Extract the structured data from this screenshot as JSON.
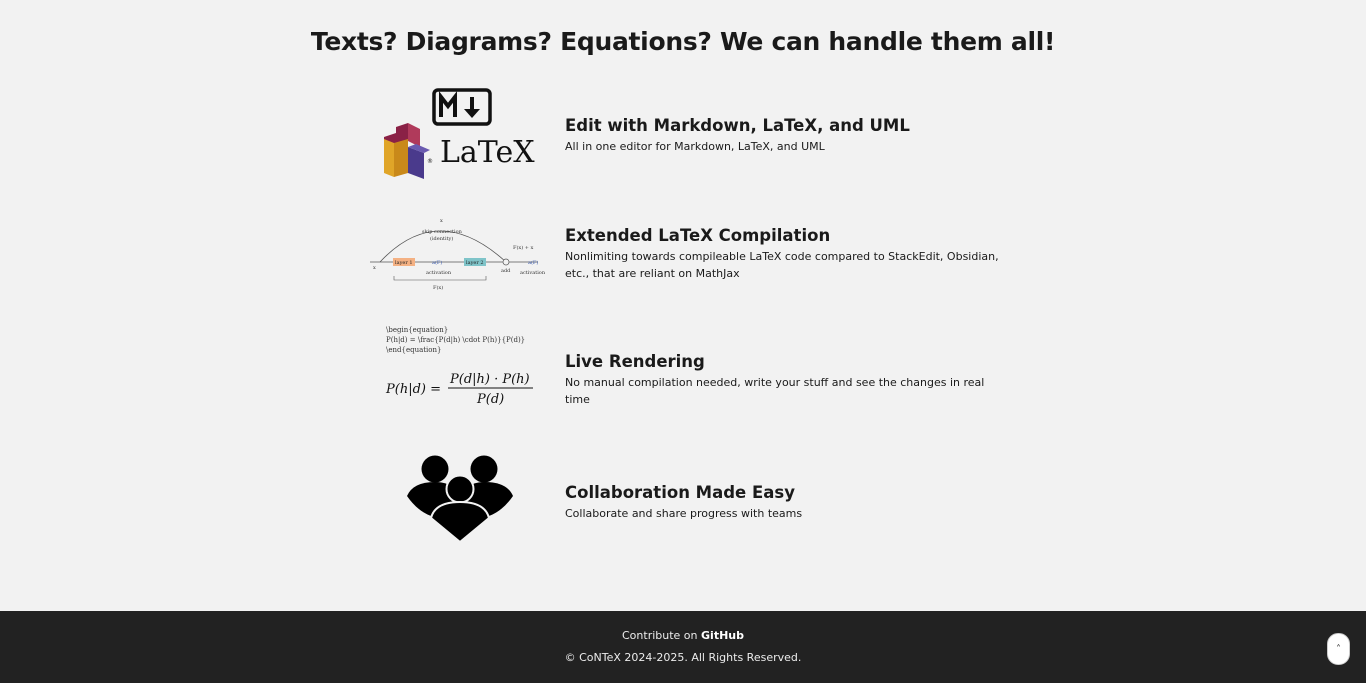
{
  "page": {
    "title": "Texts? Diagrams? Equations? We can handle them all!"
  },
  "features": [
    {
      "title": "Edit with Markdown, LaTeX, and UML",
      "description": "All in one editor for Markdown, LaTeX, and UML"
    },
    {
      "title": "Extended LaTeX Compilation",
      "description": "Nonlimiting towards compileable LaTeX code compared to StackEdit, Obsidian, etc., that are reliant on MathJax"
    },
    {
      "title": "Live Rendering",
      "description": "No manual compilation needed, write your stuff and see the changes in real time"
    },
    {
      "title": "Collaboration Made Easy",
      "description": "Collaborate and share progress with teams"
    }
  ],
  "icons": {
    "editors": {
      "latex_logo": "LaTeX"
    },
    "diagram": {
      "top_label": "x",
      "skip_label_1": "skip connection",
      "skip_label_2": "(identity)",
      "input_label": "x",
      "layer1": "layer 1",
      "layer2": "layer 2",
      "mid_label": "a(F)",
      "activation_label": "activation",
      "add_label": "add",
      "out_label": "a(F)",
      "out_activation": "activation",
      "right_formula": "F(x) + x",
      "bottom_label": "F(x)"
    },
    "equation": {
      "code_line1": "\\begin{equation}",
      "code_line2": "P(h|d) = \\frac{P(d|h) \\cdot P(h)}{P(d)}",
      "code_line3": "\\end{equation}",
      "lhs": "P(h|d) =",
      "numerator": "P(d|h) · P(h)",
      "denominator": "P(d)"
    }
  },
  "footer": {
    "contribute_prefix": "Contribute on",
    "github_label": "GitHub",
    "copyright": "© CoNTeX 2024-2025. All Rights Reserved."
  },
  "scroll_top": {
    "label": "˄"
  },
  "colors": {
    "uml_red": "#8a2146",
    "uml_yellow": "#e0a528",
    "uml_purple": "#4a3a8c",
    "layer1": "#f4b183",
    "layer2": "#7fc4c9",
    "footer_bg": "#222222"
  }
}
